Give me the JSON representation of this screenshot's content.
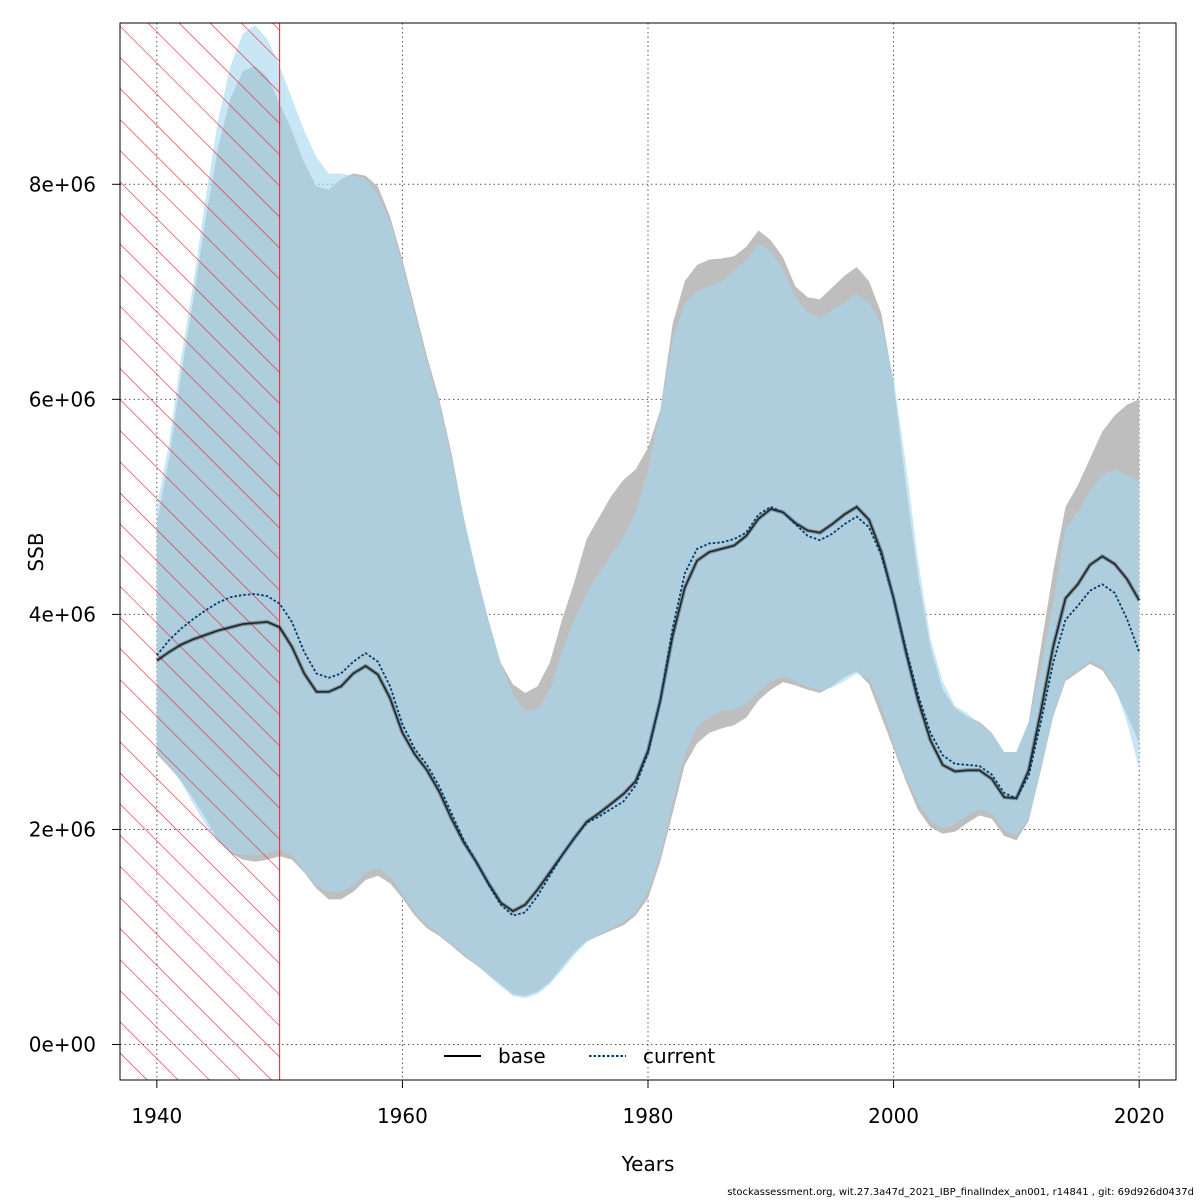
{
  "footer": "stockassessment.org, wit.27.3a47d_2021_IBP_finalIndex_an001, r14841 , git: 69d926d0437d",
  "chart_data": {
    "type": "area",
    "xlabel": "Years",
    "ylabel": "SSB",
    "xlim": [
      1937,
      2023
    ],
    "ylim": [
      -330000,
      9500000
    ],
    "x_ticks": [
      1940,
      1960,
      1980,
      2000,
      2020
    ],
    "x_tick_labels": [
      "1940",
      "1960",
      "1980",
      "2000",
      "2020"
    ],
    "y_ticks": [
      0,
      2000000,
      4000000,
      6000000,
      8000000
    ],
    "y_tick_labels": [
      "0e+00",
      "2e+06",
      "4e+06",
      "6e+06",
      "8e+06"
    ],
    "grid": true,
    "legend_position": "bottom-center",
    "hatched_region": {
      "x_from": 1937,
      "x_to": 1950,
      "color": "#e8202a"
    },
    "colors": {
      "base_band": "#bebebe",
      "current_band": "#a6d8f0",
      "overlap_band": "#a4c3d5",
      "base_line": "#000000",
      "current_line": "#003a6e",
      "hatch": "#e8202a"
    },
    "x": [
      1940,
      1941,
      1942,
      1943,
      1944,
      1945,
      1946,
      1947,
      1948,
      1949,
      1950,
      1951,
      1952,
      1953,
      1954,
      1955,
      1956,
      1957,
      1958,
      1959,
      1960,
      1961,
      1962,
      1963,
      1964,
      1965,
      1966,
      1967,
      1968,
      1969,
      1970,
      1971,
      1972,
      1973,
      1974,
      1975,
      1976,
      1977,
      1978,
      1979,
      1980,
      1981,
      1982,
      1983,
      1984,
      1985,
      1986,
      1987,
      1988,
      1989,
      1990,
      1991,
      1992,
      1993,
      1994,
      1995,
      1996,
      1997,
      1998,
      1999,
      2000,
      2001,
      2002,
      2003,
      2004,
      2005,
      2006,
      2007,
      2008,
      2009,
      2010,
      2011,
      2012,
      2013,
      2014,
      2015,
      2016,
      2017,
      2018,
      2019,
      2020
    ],
    "series": [
      {
        "name": "base",
        "line_style": "solid",
        "values": [
          3570000,
          3650000,
          3720000,
          3770000,
          3810000,
          3850000,
          3880000,
          3910000,
          3920000,
          3930000,
          3880000,
          3700000,
          3450000,
          3280000,
          3280000,
          3330000,
          3450000,
          3520000,
          3440000,
          3220000,
          2900000,
          2700000,
          2550000,
          2350000,
          2100000,
          1880000,
          1700000,
          1500000,
          1320000,
          1240000,
          1300000,
          1440000,
          1600000,
          1760000,
          1920000,
          2070000,
          2150000,
          2240000,
          2330000,
          2450000,
          2730000,
          3200000,
          3800000,
          4250000,
          4500000,
          4580000,
          4610000,
          4640000,
          4730000,
          4890000,
          4980000,
          4950000,
          4850000,
          4780000,
          4760000,
          4840000,
          4930000,
          5000000,
          4880000,
          4580000,
          4150000,
          3650000,
          3200000,
          2830000,
          2600000,
          2540000,
          2550000,
          2550000,
          2470000,
          2300000,
          2290000,
          2550000,
          3100000,
          3700000,
          4150000,
          4280000,
          4460000,
          4540000,
          4470000,
          4330000,
          4130000
        ],
        "upper": [
          4850000,
          5450000,
          6250000,
          6950000,
          7700000,
          8350000,
          8800000,
          9050000,
          9100000,
          9000000,
          8750000,
          8500000,
          8200000,
          7980000,
          7950000,
          8050000,
          8100000,
          8080000,
          7980000,
          7700000,
          7300000,
          6850000,
          6400000,
          6000000,
          5500000,
          4900000,
          4400000,
          3950000,
          3550000,
          3350000,
          3270000,
          3330000,
          3550000,
          3950000,
          4300000,
          4700000,
          4900000,
          5100000,
          5250000,
          5350000,
          5550000,
          5900000,
          6700000,
          7100000,
          7250000,
          7300000,
          7310000,
          7330000,
          7420000,
          7570000,
          7480000,
          7320000,
          7050000,
          6950000,
          6930000,
          7040000,
          7150000,
          7230000,
          7100000,
          6800000,
          6150000,
          5200000,
          4350000,
          3700000,
          3300000,
          3130000,
          3050000,
          3000000,
          2900000,
          2720000,
          2720000,
          3000000,
          3700000,
          4400000,
          5000000,
          5200000,
          5450000,
          5700000,
          5850000,
          5950000,
          6000000
        ],
        "lower": [
          2700000,
          2580000,
          2450000,
          2280000,
          2100000,
          1900000,
          1780000,
          1720000,
          1700000,
          1720000,
          1750000,
          1720000,
          1600000,
          1450000,
          1350000,
          1350000,
          1420000,
          1530000,
          1570000,
          1500000,
          1360000,
          1200000,
          1080000,
          1010000,
          920000,
          820000,
          740000,
          650000,
          560000,
          470000,
          450000,
          490000,
          580000,
          720000,
          860000,
          960000,
          1010000,
          1060000,
          1110000,
          1200000,
          1360000,
          1700000,
          2150000,
          2600000,
          2800000,
          2900000,
          2940000,
          2970000,
          3040000,
          3200000,
          3300000,
          3370000,
          3340000,
          3300000,
          3270000,
          3330000,
          3420000,
          3470000,
          3350000,
          3050000,
          2750000,
          2450000,
          2180000,
          2020000,
          1960000,
          1980000,
          2060000,
          2130000,
          2100000,
          1940000,
          1900000,
          2080000,
          2550000,
          3050000,
          3380000,
          3460000,
          3540000,
          3480000,
          3310000,
          3070000,
          2800000
        ]
      },
      {
        "name": "current",
        "line_style": "dotted",
        "values": [
          3620000,
          3760000,
          3870000,
          3960000,
          4040000,
          4110000,
          4160000,
          4180000,
          4190000,
          4170000,
          4100000,
          3930000,
          3650000,
          3450000,
          3410000,
          3450000,
          3560000,
          3640000,
          3560000,
          3330000,
          2980000,
          2750000,
          2600000,
          2400000,
          2150000,
          1900000,
          1700000,
          1490000,
          1300000,
          1200000,
          1230000,
          1380000,
          1570000,
          1760000,
          1920000,
          2060000,
          2120000,
          2190000,
          2260000,
          2410000,
          2710000,
          3200000,
          3870000,
          4380000,
          4610000,
          4660000,
          4670000,
          4700000,
          4760000,
          4930000,
          5000000,
          4950000,
          4840000,
          4730000,
          4690000,
          4750000,
          4840000,
          4910000,
          4810000,
          4550000,
          4150000,
          3680000,
          3250000,
          2900000,
          2690000,
          2610000,
          2600000,
          2590000,
          2510000,
          2340000,
          2290000,
          2500000,
          3000000,
          3550000,
          3950000,
          4080000,
          4220000,
          4280000,
          4200000,
          3960000,
          3650000
        ],
        "upper": [
          5000000,
          5600000,
          6400000,
          7100000,
          7900000,
          8600000,
          9100000,
          9400000,
          9480000,
          9350000,
          9100000,
          8800000,
          8500000,
          8250000,
          8100000,
          8100000,
          8080000,
          8050000,
          7900000,
          7650000,
          7250000,
          6800000,
          6350000,
          5950000,
          5450000,
          4900000,
          4400000,
          3950000,
          3550000,
          3250000,
          3100000,
          3120000,
          3300000,
          3650000,
          3950000,
          4200000,
          4380000,
          4550000,
          4720000,
          4950000,
          5350000,
          5900000,
          6550000,
          6900000,
          7000000,
          7050000,
          7100000,
          7200000,
          7300000,
          7450000,
          7380000,
          7200000,
          6950000,
          6800000,
          6760000,
          6830000,
          6900000,
          6980000,
          6900000,
          6700000,
          6200000,
          5400000,
          4500000,
          3780000,
          3380000,
          3150000,
          3080000,
          2980000,
          2900000,
          2720000,
          2720000,
          3000000,
          3500000,
          4100000,
          4800000,
          4950000,
          5150000,
          5300000,
          5350000,
          5300000,
          5250000
        ],
        "lower": [
          2720000,
          2600000,
          2430000,
          2230000,
          2040000,
          1880000,
          1790000,
          1760000,
          1760000,
          1780000,
          1820000,
          1760000,
          1610000,
          1480000,
          1420000,
          1420000,
          1480000,
          1600000,
          1640000,
          1560000,
          1400000,
          1230000,
          1110000,
          1030000,
          940000,
          840000,
          750000,
          640000,
          540000,
          450000,
          430000,
          470000,
          560000,
          690000,
          830000,
          950000,
          1020000,
          1080000,
          1140000,
          1230000,
          1420000,
          1750000,
          2250000,
          2700000,
          2950000,
          3050000,
          3100000,
          3120000,
          3170000,
          3280000,
          3380000,
          3420000,
          3380000,
          3330000,
          3290000,
          3320000,
          3380000,
          3450000,
          3400000,
          3150000,
          2800000,
          2480000,
          2250000,
          2080000,
          2010000,
          2050000,
          2130000,
          2190000,
          2150000,
          1990000,
          1940000,
          2100000,
          2550000,
          3050000,
          3400000,
          3480000,
          3560000,
          3520000,
          3330000,
          3000000,
          2560000
        ]
      }
    ]
  }
}
